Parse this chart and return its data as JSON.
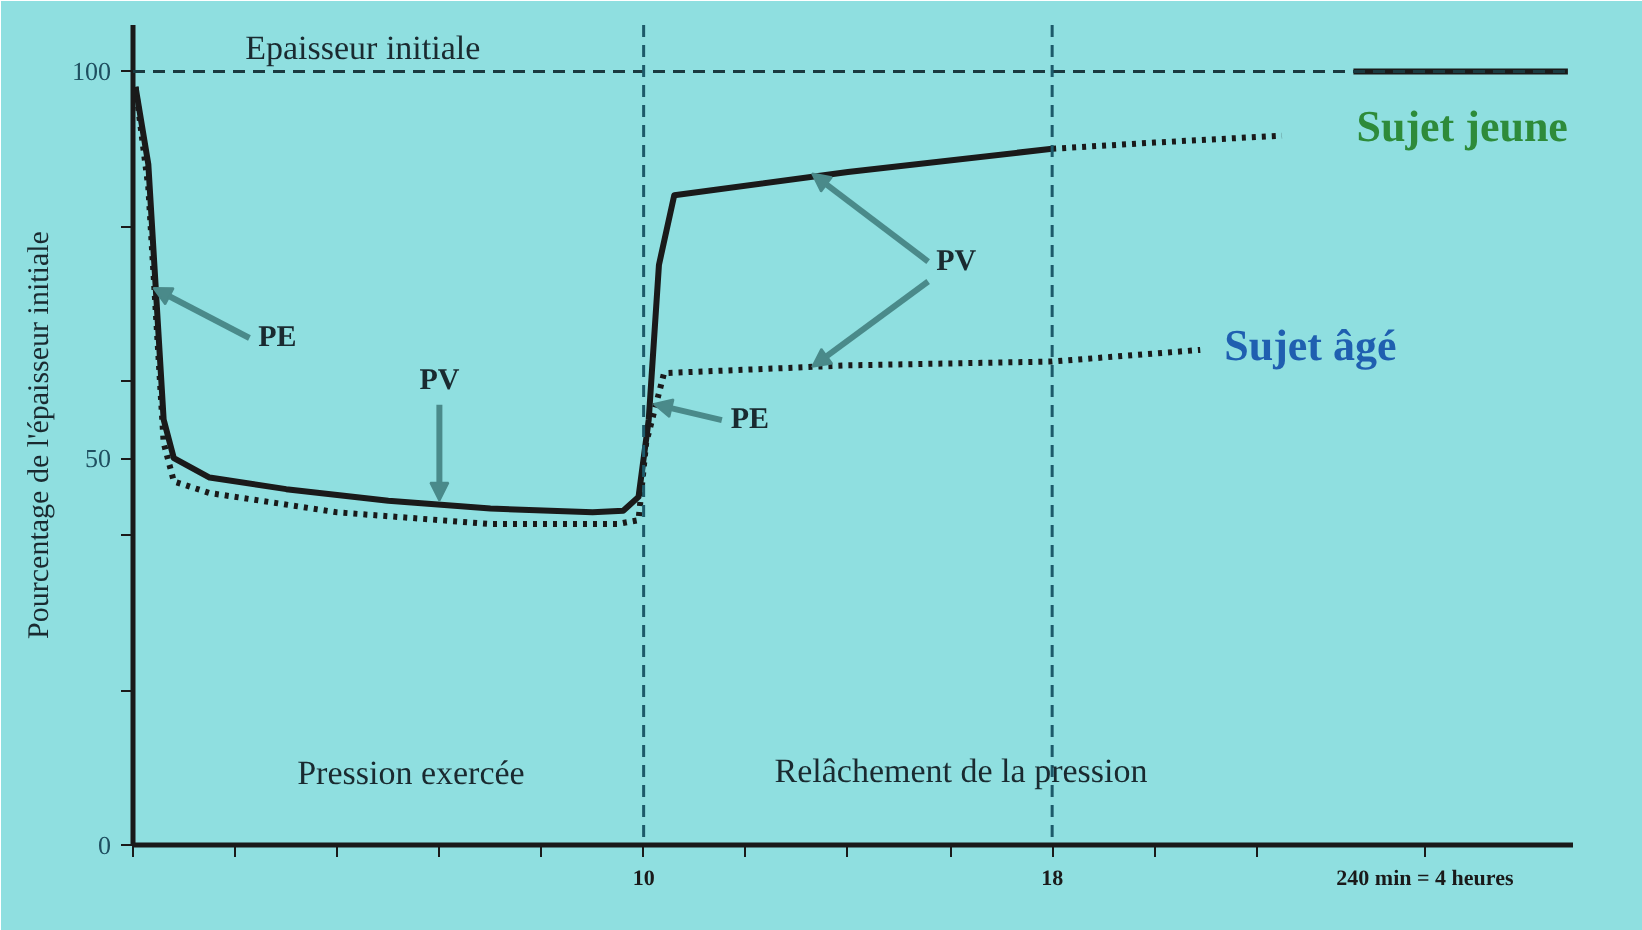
{
  "chart_data": {
    "type": "line",
    "ylabel": "Pourcentage de l'épaisseur initiale",
    "xlim": [
      0,
      28.2
    ],
    "ylim": [
      0,
      106
    ],
    "xticks": [
      {
        "value": 0,
        "label": null
      },
      {
        "value": 2,
        "label": null
      },
      {
        "value": 4,
        "label": null
      },
      {
        "value": 6,
        "label": null
      },
      {
        "value": 8,
        "label": null
      },
      10,
      {
        "value": 12,
        "label": null
      },
      {
        "value": 14,
        "label": null
      },
      {
        "value": 16,
        "label": null
      },
      18,
      {
        "value": 20,
        "label": null
      },
      {
        "value": 22,
        "label": null
      },
      {
        "value": 25.3,
        "label": "240 min = 4 heures"
      }
    ],
    "yticks": [
      0,
      {
        "value": 20,
        "label": null
      },
      {
        "value": 40,
        "label": null
      },
      50,
      {
        "value": 60,
        "label": null
      },
      {
        "value": 80,
        "label": null
      },
      100
    ],
    "series": [
      {
        "color": "#1a1a1a",
        "line_style": "solid",
        "x": [
          0.05,
          0.3,
          0.6,
          0.8,
          1.5,
          3,
          5,
          7,
          9,
          9.6,
          9.9,
          10.1,
          10.3,
          10.6,
          14,
          18
        ],
        "values": [
          98,
          88,
          55,
          50,
          47.5,
          46,
          44.5,
          43.5,
          43,
          43.2,
          45,
          55,
          75,
          84,
          87,
          90
        ]
      },
      {
        "color": "#1a1a1a",
        "line_style": "dotted",
        "x": [
          18,
          20,
          22.5
        ],
        "values": [
          90,
          90.8,
          91.7
        ]
      },
      {
        "name": "Sujet jeune",
        "color": "#1a1a1a",
        "line_style": "solid",
        "x": [
          23.9,
          28.1
        ],
        "values": [
          100,
          100
        ]
      },
      {
        "name": "Sujet âgé",
        "color": "#1a1a1a",
        "line_style": "dotted",
        "x": [
          0.05,
          0.3,
          0.6,
          0.8,
          1.5,
          4,
          7,
          9.5,
          9.9,
          10.05,
          10.4,
          14,
          18,
          20.9
        ],
        "values": [
          98,
          85,
          52,
          47,
          45.5,
          43,
          41.5,
          41.5,
          42,
          52,
          61,
          62,
          62.5,
          64
        ]
      }
    ],
    "ref_lines": [
      {
        "axis": "y",
        "value": 100,
        "label": "Epaisseur initiale",
        "color": "#1a3a40",
        "line_style": "dashed"
      },
      {
        "axis": "x",
        "value": 10,
        "color": "#1d5a6a",
        "line_style": "dashed"
      },
      {
        "axis": "x",
        "value": 18,
        "color": "#1d5a6a",
        "line_style": "dashed"
      }
    ],
    "annotations": [
      {
        "text": "PE",
        "x": 0.4,
        "y": 72
      },
      {
        "text": "PV",
        "x": 6,
        "y": 44.5
      },
      {
        "text": "PE",
        "x": 10.2,
        "y": 57
      },
      {
        "text": "PV",
        "x": 13.3,
        "y": 86.8
      },
      "Pression exercée",
      "Relâchement de la pression"
    ]
  }
}
